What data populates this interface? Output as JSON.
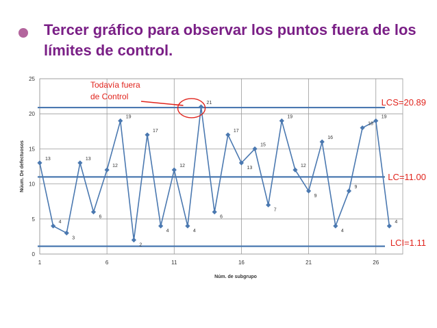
{
  "slide": {
    "title_line1": "Tercer gráfico para observar los puntos fuera de los",
    "title_line2": "límites de control."
  },
  "chart_data": {
    "type": "line",
    "xlabel": "Núm. de subgrupo",
    "ylabel": "Núum. De defectuosos",
    "xlim": [
      1,
      28
    ],
    "ylim": [
      0,
      25
    ],
    "x_ticks": [
      1,
      6,
      11,
      16,
      21,
      26
    ],
    "y_ticks": [
      0,
      5,
      10,
      15,
      20,
      25
    ],
    "grid": true,
    "x": [
      1,
      2,
      3,
      4,
      5,
      6,
      7,
      8,
      9,
      10,
      11,
      12,
      13,
      14,
      15,
      16,
      17,
      18,
      19,
      20,
      21,
      22,
      23,
      24,
      25,
      26,
      27
    ],
    "values": [
      13,
      4,
      3,
      13,
      6,
      12,
      19,
      2,
      17,
      4,
      12,
      4,
      21,
      6,
      17,
      13,
      15,
      7,
      19,
      12,
      9,
      16,
      4,
      9,
      18,
      19,
      4
    ],
    "series_color": "#4a78b0",
    "limits": [
      {
        "label": "LCS=20.89",
        "value": 20.89
      },
      {
        "label": "LC=11.00",
        "value": 11.0
      },
      {
        "label": "LCI=1.11",
        "value": 1.11
      }
    ],
    "limit_color": "#4a78b0",
    "annotation": {
      "line1": "Todavía fuera",
      "line2": "de Control",
      "point_x": 13,
      "point_y": 21,
      "color": "#e0231c"
    }
  }
}
